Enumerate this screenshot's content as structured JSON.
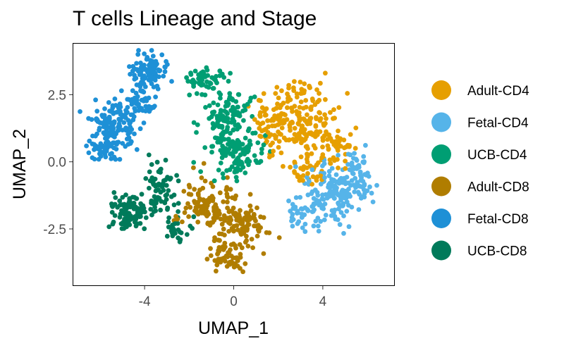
{
  "chart_data": {
    "type": "scatter",
    "title": "T cells Lineage and Stage",
    "xlabel": "UMAP_1",
    "ylabel": "UMAP_2",
    "xlim": [
      -7.2,
      7.2
    ],
    "ylim": [
      -4.6,
      4.4
    ],
    "x_ticks": [
      {
        "value": -4,
        "label": "-4"
      },
      {
        "value": 0,
        "label": "0"
      },
      {
        "value": 4,
        "label": "4"
      }
    ],
    "y_ticks": [
      {
        "value": 2.5,
        "label": "2.5"
      },
      {
        "value": 0,
        "label": "0.0"
      },
      {
        "value": -2.5,
        "label": "-2.5"
      }
    ],
    "grid": false,
    "legend_position": "right",
    "series": [
      {
        "name": "Adult-CD4",
        "color": "#E69F00",
        "clusters": [
          [
            3.0,
            1.7,
            1.3,
            1.2,
            150
          ],
          [
            1.6,
            1.4,
            0.7,
            0.9,
            60
          ],
          [
            4.4,
            0.6,
            0.9,
            0.8,
            60
          ],
          [
            3.2,
            -0.3,
            0.9,
            0.6,
            40
          ]
        ]
      },
      {
        "name": "Fetal-CD4",
        "color": "#56B4E9",
        "clusters": [
          [
            4.5,
            -1.2,
            1.2,
            1.1,
            150
          ],
          [
            5.6,
            -0.5,
            0.5,
            0.9,
            50
          ],
          [
            3.0,
            -1.8,
            0.8,
            0.6,
            40
          ]
        ]
      },
      {
        "name": "UCB-CD4",
        "color": "#009E73",
        "clusters": [
          [
            -0.3,
            1.5,
            1.2,
            1.4,
            150
          ],
          [
            0.2,
            0.2,
            0.9,
            0.7,
            80
          ],
          [
            -1.5,
            3.0,
            0.7,
            0.5,
            40
          ]
        ]
      },
      {
        "name": "Adult-CD8",
        "color": "#B07D00",
        "clusters": [
          [
            -1.2,
            -1.6,
            1.1,
            0.9,
            120
          ],
          [
            0.5,
            -2.3,
            0.9,
            0.7,
            90
          ],
          [
            -0.2,
            -3.5,
            0.9,
            0.5,
            60
          ]
        ]
      },
      {
        "name": "Fetal-CD8",
        "color": "#1E90D6",
        "clusters": [
          [
            -5.3,
            1.4,
            1.0,
            0.8,
            130
          ],
          [
            -3.8,
            3.4,
            0.7,
            0.6,
            100
          ],
          [
            -5.8,
            0.5,
            0.6,
            0.5,
            50
          ],
          [
            -4.2,
            2.2,
            0.7,
            0.5,
            50
          ]
        ]
      },
      {
        "name": "UCB-CD8",
        "color": "#007A5A",
        "clusters": [
          [
            -4.6,
            -1.9,
            0.9,
            0.7,
            100
          ],
          [
            -3.2,
            -1.0,
            0.7,
            0.7,
            60
          ],
          [
            -2.6,
            -2.5,
            0.6,
            0.5,
            30
          ]
        ]
      }
    ],
    "cluster_format": [
      "x_center",
      "y_center",
      "x_spread",
      "y_spread",
      "point_count"
    ]
  }
}
